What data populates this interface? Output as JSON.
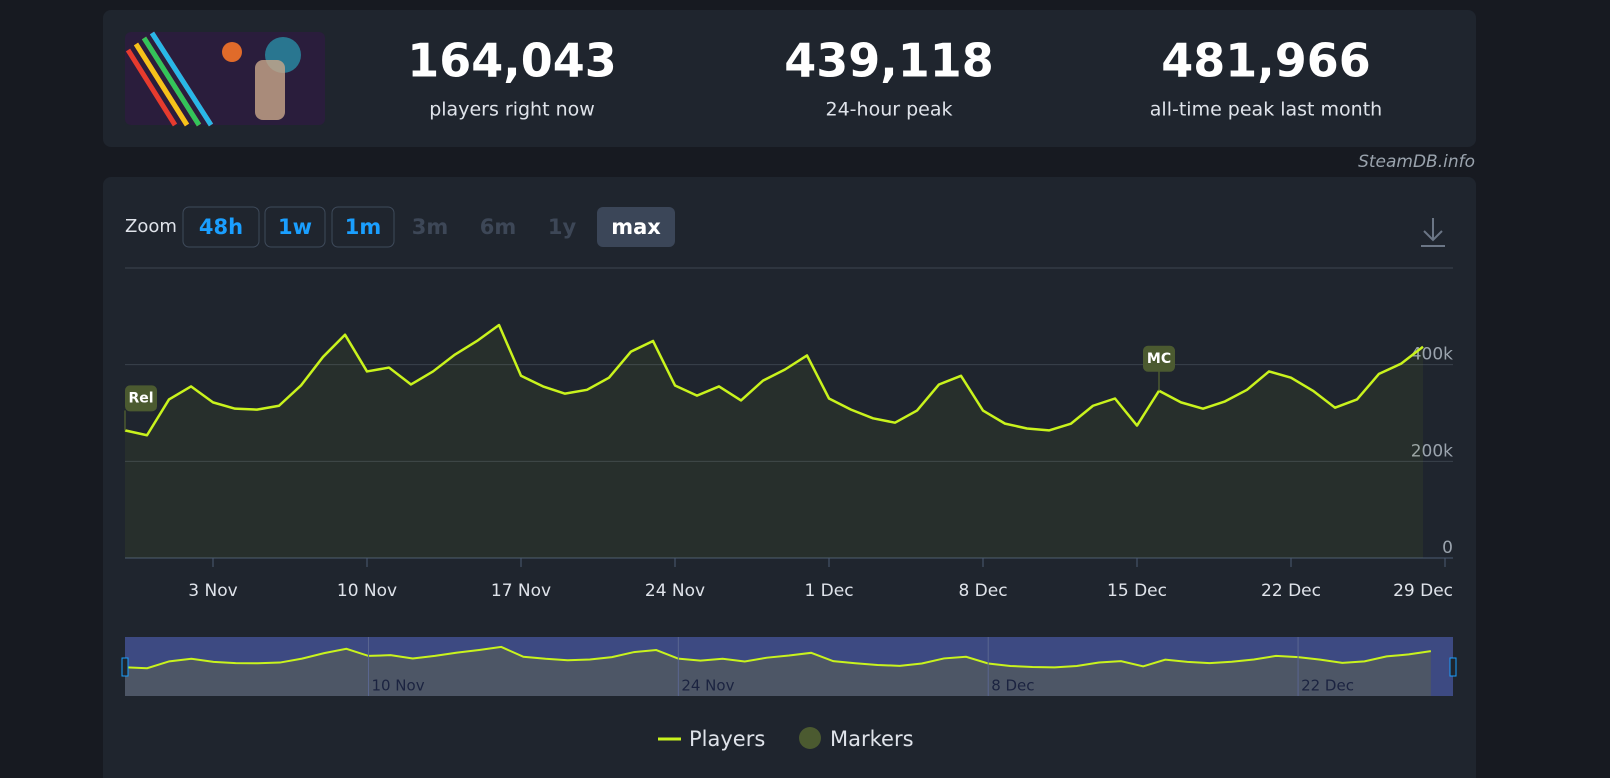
{
  "header": {
    "stats": [
      {
        "value": "164,043",
        "label": "players right now"
      },
      {
        "value": "439,118",
        "label": "24-hour peak"
      },
      {
        "value": "481,966",
        "label": "all-time peak last month"
      }
    ],
    "source": "SteamDB.info"
  },
  "zoom": {
    "label": "Zoom",
    "options": [
      {
        "label": "48h",
        "state": "enabled"
      },
      {
        "label": "1w",
        "state": "enabled"
      },
      {
        "label": "1m",
        "state": "enabled"
      },
      {
        "label": "3m",
        "state": "disabled"
      },
      {
        "label": "6m",
        "state": "disabled"
      },
      {
        "label": "1y",
        "state": "disabled"
      },
      {
        "label": "max",
        "state": "active"
      }
    ]
  },
  "chart_data": {
    "type": "line",
    "x": [
      "30 Oct",
      "31 Oct",
      "1 Nov",
      "2 Nov",
      "3 Nov",
      "4 Nov",
      "5 Nov",
      "6 Nov",
      "7 Nov",
      "8 Nov",
      "9 Nov",
      "10 Nov",
      "11 Nov",
      "12 Nov",
      "13 Nov",
      "14 Nov",
      "15 Nov",
      "16 Nov",
      "17 Nov",
      "18 Nov",
      "19 Nov",
      "20 Nov",
      "21 Nov",
      "22 Nov",
      "23 Nov",
      "24 Nov",
      "25 Nov",
      "26 Nov",
      "27 Nov",
      "28 Nov",
      "29 Nov",
      "30 Nov",
      "1 Dec",
      "2 Dec",
      "3 Dec",
      "4 Dec",
      "5 Dec",
      "6 Dec",
      "7 Dec",
      "8 Dec",
      "9 Dec",
      "10 Dec",
      "11 Dec",
      "12 Dec",
      "13 Dec",
      "14 Dec",
      "15 Dec",
      "16 Dec",
      "17 Dec",
      "18 Dec",
      "19 Dec",
      "20 Dec",
      "21 Dec",
      "22 Dec",
      "23 Dec",
      "24 Dec",
      "25 Dec",
      "26 Dec",
      "27 Dec",
      "28 Dec"
    ],
    "series": [
      {
        "name": "Players",
        "color": "#c9f31d",
        "values": [
          264000,
          254000,
          328000,
          355000,
          322000,
          309000,
          307000,
          315000,
          357000,
          416000,
          462000,
          386000,
          394000,
          359000,
          386000,
          421000,
          449000,
          482000,
          377000,
          355000,
          340000,
          348000,
          373000,
          427000,
          449000,
          357000,
          336000,
          355000,
          326000,
          367000,
          390000,
          419000,
          330000,
          307000,
          289000,
          280000,
          305000,
          359000,
          377000,
          305000,
          278000,
          268000,
          264000,
          278000,
          315000,
          330000,
          274000,
          346000,
          322000,
          309000,
          324000,
          348000,
          386000,
          373000,
          346000,
          311000,
          328000,
          381000,
          402000,
          437000
        ]
      }
    ],
    "markers": {
      "name": "Markers",
      "color": "#4b5a30"
    },
    "annotations": [
      {
        "label": "Rel",
        "x": "30 Oct"
      },
      {
        "label": "MC",
        "x": "16 Dec"
      }
    ],
    "xlim": [
      "30 Oct",
      "29 Dec"
    ],
    "xticks": [
      "3 Nov",
      "10 Nov",
      "17 Nov",
      "24 Nov",
      "1 Dec",
      "8 Dec",
      "15 Dec",
      "22 Dec",
      "29 Dec"
    ],
    "navigator_ticks": [
      "10 Nov",
      "24 Nov",
      "8 Dec",
      "22 Dec"
    ],
    "ylim": [
      0,
      600000
    ],
    "yticks": [
      {
        "value": 0,
        "label": "0"
      },
      {
        "value": 200000,
        "label": "200k"
      },
      {
        "value": 400000,
        "label": "400k"
      }
    ],
    "grid": true
  }
}
